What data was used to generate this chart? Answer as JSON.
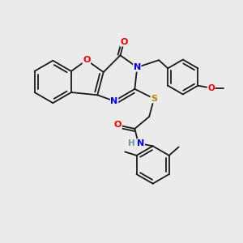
{
  "background_color": "#ebebeb",
  "atom_colors": {
    "C": "#1a1a1a",
    "N": "#0000ee",
    "O": "#ee0000",
    "S": "#b8860b",
    "H": "#5f9ea0"
  },
  "bond_color": "#1a1a1a",
  "bond_width": 1.3
}
